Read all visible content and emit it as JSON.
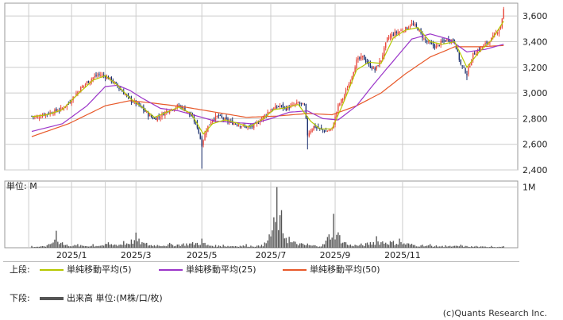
{
  "chart_data": [
    {
      "type": "candlestick",
      "title": "",
      "ylim": [
        2400,
        3700
      ],
      "y_ticks": [
        "2,400",
        "2,600",
        "2,800",
        "3,000",
        "3,200",
        "3,400",
        "3,600"
      ],
      "y_tick_values": [
        2400,
        2600,
        2800,
        3000,
        3200,
        3400,
        3600
      ],
      "grid": true,
      "up_color": "#e8483c",
      "down_color": "#1a2f6e",
      "close_series": [
        [
          0,
          2820
        ],
        [
          4,
          2810
        ],
        [
          8,
          2835
        ],
        [
          12,
          2845
        ],
        [
          16,
          2860
        ],
        [
          20,
          2880
        ],
        [
          24,
          2920
        ],
        [
          28,
          2980
        ],
        [
          32,
          3040
        ],
        [
          36,
          3080
        ],
        [
          40,
          3120
        ],
        [
          44,
          3145
        ],
        [
          48,
          3130
        ],
        [
          52,
          3100
        ],
        [
          56,
          3050
        ],
        [
          60,
          3000
        ],
        [
          64,
          2950
        ],
        [
          68,
          2920
        ],
        [
          72,
          2880
        ],
        [
          76,
          2830
        ],
        [
          80,
          2800
        ],
        [
          84,
          2820
        ],
        [
          88,
          2860
        ],
        [
          92,
          2880
        ],
        [
          96,
          2900
        ],
        [
          100,
          2870
        ],
        [
          104,
          2820
        ],
        [
          108,
          2740
        ],
        [
          111,
          2600
        ],
        [
          114,
          2720
        ],
        [
          118,
          2800
        ],
        [
          122,
          2820
        ],
        [
          126,
          2790
        ],
        [
          130,
          2770
        ],
        [
          134,
          2760
        ],
        [
          138,
          2740
        ],
        [
          142,
          2730
        ],
        [
          146,
          2750
        ],
        [
          150,
          2800
        ],
        [
          154,
          2850
        ],
        [
          158,
          2880
        ],
        [
          162,
          2900
        ],
        [
          166,
          2880
        ],
        [
          170,
          2900
        ],
        [
          174,
          2920
        ],
        [
          178,
          2900
        ],
        [
          180,
          2680
        ],
        [
          184,
          2740
        ],
        [
          188,
          2720
        ],
        [
          192,
          2700
        ],
        [
          196,
          2720
        ],
        [
          200,
          2900
        ],
        [
          204,
          2980
        ],
        [
          208,
          3100
        ],
        [
          212,
          3250
        ],
        [
          216,
          3280
        ],
        [
          220,
          3220
        ],
        [
          224,
          3180
        ],
        [
          228,
          3260
        ],
        [
          232,
          3420
        ],
        [
          236,
          3460
        ],
        [
          240,
          3480
        ],
        [
          244,
          3500
        ],
        [
          248,
          3540
        ],
        [
          252,
          3500
        ],
        [
          256,
          3420
        ],
        [
          260,
          3380
        ],
        [
          264,
          3360
        ],
        [
          268,
          3400
        ],
        [
          272,
          3420
        ],
        [
          276,
          3400
        ],
        [
          280,
          3220
        ],
        [
          284,
          3150
        ],
        [
          288,
          3300
        ],
        [
          292,
          3340
        ],
        [
          296,
          3380
        ],
        [
          300,
          3420
        ],
        [
          304,
          3480
        ],
        [
          306,
          3520
        ],
        [
          308,
          3650
        ]
      ],
      "ma5": [
        [
          0,
          2815
        ],
        [
          10,
          2830
        ],
        [
          20,
          2870
        ],
        [
          30,
          2990
        ],
        [
          40,
          3100
        ],
        [
          48,
          3135
        ],
        [
          56,
          3060
        ],
        [
          64,
          2960
        ],
        [
          72,
          2890
        ],
        [
          80,
          2810
        ],
        [
          88,
          2850
        ],
        [
          96,
          2890
        ],
        [
          104,
          2840
        ],
        [
          112,
          2680
        ],
        [
          118,
          2760
        ],
        [
          126,
          2790
        ],
        [
          134,
          2765
        ],
        [
          142,
          2735
        ],
        [
          150,
          2790
        ],
        [
          158,
          2870
        ],
        [
          166,
          2885
        ],
        [
          174,
          2910
        ],
        [
          182,
          2780
        ],
        [
          188,
          2720
        ],
        [
          196,
          2720
        ],
        [
          204,
          2940
        ],
        [
          212,
          3180
        ],
        [
          220,
          3240
        ],
        [
          228,
          3230
        ],
        [
          236,
          3430
        ],
        [
          244,
          3490
        ],
        [
          252,
          3510
        ],
        [
          260,
          3400
        ],
        [
          268,
          3380
        ],
        [
          276,
          3400
        ],
        [
          284,
          3200
        ],
        [
          292,
          3320
        ],
        [
          300,
          3410
        ],
        [
          308,
          3560
        ]
      ],
      "ma25": [
        [
          0,
          2700
        ],
        [
          20,
          2760
        ],
        [
          36,
          2900
        ],
        [
          48,
          3050
        ],
        [
          56,
          3060
        ],
        [
          64,
          3020
        ],
        [
          72,
          2960
        ],
        [
          84,
          2880
        ],
        [
          96,
          2860
        ],
        [
          108,
          2820
        ],
        [
          120,
          2780
        ],
        [
          132,
          2770
        ],
        [
          144,
          2760
        ],
        [
          156,
          2800
        ],
        [
          168,
          2850
        ],
        [
          180,
          2860
        ],
        [
          190,
          2800
        ],
        [
          200,
          2790
        ],
        [
          212,
          2900
        ],
        [
          224,
          3080
        ],
        [
          236,
          3250
        ],
        [
          248,
          3420
        ],
        [
          260,
          3460
        ],
        [
          272,
          3420
        ],
        [
          284,
          3320
        ],
        [
          296,
          3340
        ],
        [
          308,
          3380
        ]
      ],
      "ma50": [
        [
          0,
          2660
        ],
        [
          24,
          2760
        ],
        [
          48,
          2900
        ],
        [
          64,
          2940
        ],
        [
          80,
          2920
        ],
        [
          100,
          2890
        ],
        [
          120,
          2850
        ],
        [
          140,
          2810
        ],
        [
          160,
          2820
        ],
        [
          180,
          2840
        ],
        [
          196,
          2830
        ],
        [
          212,
          2900
        ],
        [
          228,
          3000
        ],
        [
          244,
          3150
        ],
        [
          260,
          3280
        ],
        [
          276,
          3360
        ],
        [
          292,
          3360
        ],
        [
          308,
          3370
        ]
      ]
    },
    {
      "type": "bar",
      "title": "",
      "ylabel": "単位: M",
      "y_ticks": [
        "1M"
      ],
      "y_tick_values": [
        1000000
      ],
      "ylim": [
        0,
        1100000
      ],
      "x_ticks": [
        "2025/1",
        "2025/3",
        "2025/5",
        "2025/7",
        "2025/9",
        "2025/11"
      ],
      "x_tick_index": [
        26,
        68,
        111,
        156,
        198,
        242
      ],
      "volume_peaks": [
        [
          0,
          30000
        ],
        [
          10,
          40000
        ],
        [
          16,
          280000
        ],
        [
          20,
          90000
        ],
        [
          30,
          60000
        ],
        [
          40,
          60000
        ],
        [
          50,
          90000
        ],
        [
          60,
          110000
        ],
        [
          68,
          250000
        ],
        [
          75,
          80000
        ],
        [
          90,
          80000
        ],
        [
          111,
          150000
        ],
        [
          113,
          80000
        ],
        [
          125,
          50000
        ],
        [
          140,
          60000
        ],
        [
          150,
          50000
        ],
        [
          155,
          220000
        ],
        [
          160,
          1000000
        ],
        [
          163,
          620000
        ],
        [
          168,
          180000
        ],
        [
          180,
          70000
        ],
        [
          190,
          60000
        ],
        [
          197,
          560000
        ],
        [
          205,
          90000
        ],
        [
          215,
          70000
        ],
        [
          225,
          190000
        ],
        [
          240,
          150000
        ],
        [
          255,
          50000
        ],
        [
          260,
          60000
        ],
        [
          270,
          40000
        ],
        [
          280,
          50000
        ],
        [
          290,
          30000
        ],
        [
          300,
          30000
        ],
        [
          308,
          25000
        ]
      ]
    }
  ],
  "legend": {
    "upper_label": "上段:",
    "lower_label": "下段:",
    "items": [
      {
        "name": "単純移動平均(5)",
        "color": "#b5c800"
      },
      {
        "name": "単純移動平均(25)",
        "color": "#9b35c9"
      },
      {
        "name": "単純移動平均(50)",
        "color": "#e8592a"
      }
    ],
    "volume_item": "出来高 単位:(M株/口/枚)"
  },
  "copyright": "(c)Quants Research Inc."
}
